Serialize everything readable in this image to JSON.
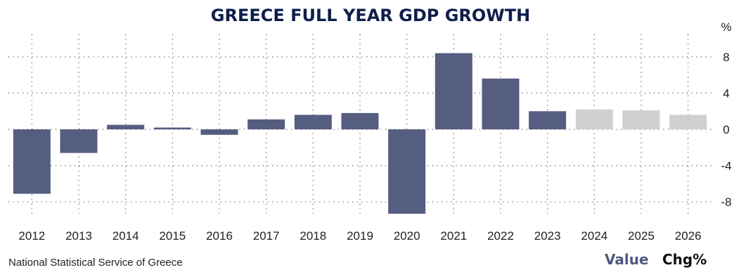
{
  "chart_data": {
    "type": "bar",
    "title": "GREECE FULL YEAR GDP GROWTH",
    "unit": "%",
    "categories": [
      "2012",
      "2013",
      "2014",
      "2015",
      "2016",
      "2017",
      "2018",
      "2019",
      "2020",
      "2021",
      "2022",
      "2023",
      "2024",
      "2025",
      "2026"
    ],
    "values": [
      -7.1,
      -2.6,
      0.5,
      0.2,
      -0.6,
      1.1,
      1.6,
      1.8,
      -9.3,
      8.4,
      5.6,
      2.0,
      2.2,
      2.1,
      1.6
    ],
    "forecast": [
      false,
      false,
      false,
      false,
      false,
      false,
      false,
      false,
      false,
      false,
      false,
      false,
      true,
      true,
      true
    ],
    "ylim": [
      -9.3,
      10.5
    ],
    "yticks": [
      8,
      4,
      0,
      -4,
      -8
    ],
    "grid": true,
    "colors": {
      "actual": "#555d80",
      "forecast": "#d0d0d0",
      "title": "#0f1f4b"
    }
  },
  "footer": {
    "source": "National Statistical Service of Greece",
    "legend_value": "Value",
    "legend_chg": "Chg%"
  }
}
